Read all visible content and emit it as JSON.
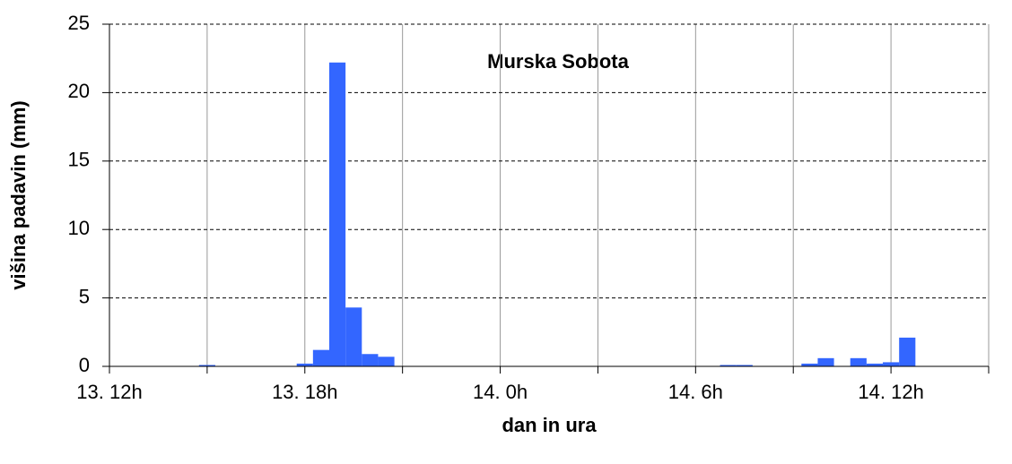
{
  "chart_data": {
    "type": "bar",
    "title": "Murska Sobota",
    "x_label": "dan in ura",
    "y_label": "višina padavin (mm)",
    "x": [
      15,
      18,
      18.5,
      19,
      19.5,
      20,
      20.5,
      31,
      31.5,
      33.5,
      34,
      35,
      35.5,
      36,
      36.5
    ],
    "values": [
      0.1,
      0.2,
      1.2,
      22.2,
      4.3,
      0.9,
      0.7,
      0.1,
      0.1,
      0.2,
      0.6,
      0.6,
      0.2,
      0.3,
      2.1
    ],
    "color": "#3366ff",
    "xlim": [
      12,
      39
    ],
    "xticks": [
      {
        "value": 12,
        "label": "13. 12h"
      },
      {
        "value": 18,
        "label": "13. 18h"
      },
      {
        "value": 24,
        "label": "14. 0h"
      },
      {
        "value": 30,
        "label": "14. 6h"
      },
      {
        "value": 36,
        "label": "14. 12h"
      }
    ],
    "minor_xticks": [
      15,
      21,
      27,
      33,
      39
    ],
    "ylim": [
      0,
      25
    ],
    "yticks": [
      0,
      5,
      10,
      15,
      20,
      25
    ],
    "grid": true
  }
}
